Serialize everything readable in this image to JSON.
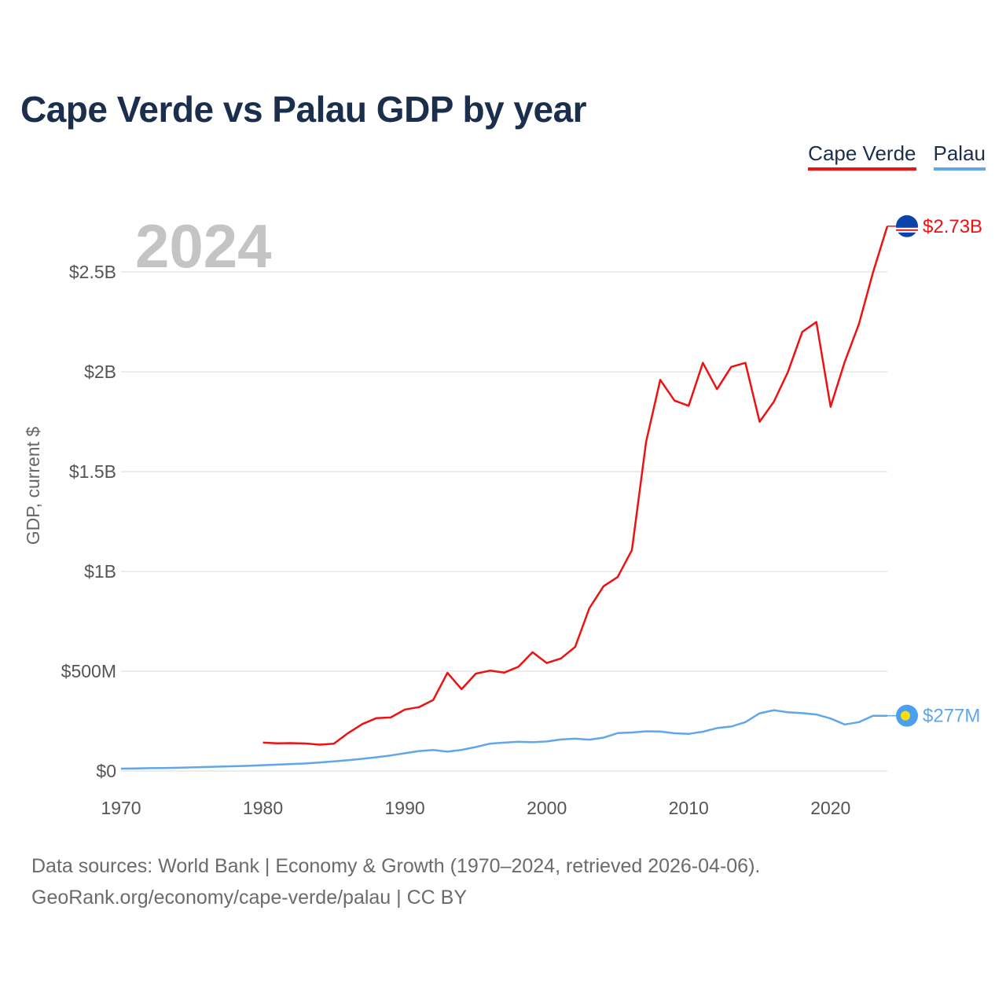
{
  "title": "Cape Verde vs Palau GDP by year",
  "legend": {
    "cape_verde": "Cape Verde",
    "palau": "Palau"
  },
  "year_overlay": "2024",
  "source_line1": "Data sources: World Bank | Economy & Growth (1970–2024, retrieved 2026-04-06).",
  "source_line2": "GeoRank.org/economy/cape-verde/palau | CC BY",
  "colors": {
    "cape_verde": "#ee1111",
    "palau": "#62a6ea",
    "grid": "#e6e6e6"
  },
  "chart_data": {
    "type": "line",
    "title": "Cape Verde vs Palau GDP by year",
    "xlabel": "",
    "ylabel": "GDP, current $",
    "xlim": [
      1970,
      2024
    ],
    "ylim": [
      0,
      2800000000
    ],
    "x_ticks": [
      1970,
      1980,
      1990,
      2000,
      2010,
      2020
    ],
    "y_ticks": [
      {
        "value": 0,
        "label": "$0"
      },
      {
        "value": 500000000,
        "label": "$500M"
      },
      {
        "value": 1000000000,
        "label": "$1B"
      },
      {
        "value": 1500000000,
        "label": "$1.5B"
      },
      {
        "value": 2000000000,
        "label": "$2B"
      },
      {
        "value": 2500000000,
        "label": "$2.5B"
      }
    ],
    "series": [
      {
        "name": "Cape Verde",
        "end_label": "$2.73B",
        "x": [
          1980,
          1981,
          1982,
          1983,
          1984,
          1985,
          1986,
          1987,
          1988,
          1989,
          1990,
          1991,
          1992,
          1993,
          1994,
          1995,
          1996,
          1997,
          1998,
          1999,
          2000,
          2001,
          2002,
          2003,
          2004,
          2005,
          2006,
          2007,
          2008,
          2009,
          2010,
          2011,
          2012,
          2013,
          2014,
          2015,
          2016,
          2017,
          2018,
          2019,
          2020,
          2021,
          2022,
          2023,
          2024
        ],
        "values": [
          142000000,
          139000000,
          140000000,
          138000000,
          132000000,
          137000000,
          190000000,
          235000000,
          265000000,
          268000000,
          308000000,
          320000000,
          356000000,
          492000000,
          410000000,
          488000000,
          503000000,
          493000000,
          522000000,
          595000000,
          541000000,
          564000000,
          622000000,
          815000000,
          926000000,
          972000000,
          1107000000,
          1650000000,
          1960000000,
          1856000000,
          1830000000,
          2045000000,
          1913000000,
          2025000000,
          2045000000,
          1750000000,
          1850000000,
          2000000000,
          2200000000,
          2250000000,
          1825000000,
          2050000000,
          2240000000,
          2500000000,
          2730000000
        ]
      },
      {
        "name": "Palau",
        "end_label": "$277M",
        "x": [
          1970,
          1971,
          1972,
          1973,
          1974,
          1975,
          1976,
          1977,
          1978,
          1979,
          1980,
          1981,
          1982,
          1983,
          1984,
          1985,
          1986,
          1987,
          1988,
          1989,
          1990,
          1991,
          1992,
          1993,
          1994,
          1995,
          1996,
          1997,
          1998,
          1999,
          2000,
          2001,
          2002,
          2003,
          2004,
          2005,
          2006,
          2007,
          2008,
          2009,
          2010,
          2011,
          2012,
          2013,
          2014,
          2015,
          2016,
          2017,
          2018,
          2019,
          2020,
          2021,
          2022,
          2023,
          2024
        ],
        "values": [
          12000000,
          13000000,
          14000000,
          15000000,
          16000000,
          18000000,
          20000000,
          22000000,
          24000000,
          26000000,
          29000000,
          32000000,
          35000000,
          38000000,
          43000000,
          48000000,
          54000000,
          61000000,
          69000000,
          78000000,
          89000000,
          100000000,
          105000000,
          97000000,
          106000000,
          120000000,
          137000000,
          142000000,
          147000000,
          144000000,
          148000000,
          158000000,
          162000000,
          157000000,
          167000000,
          190000000,
          193000000,
          199000000,
          198000000,
          189000000,
          186000000,
          197000000,
          215000000,
          223000000,
          245000000,
          289000000,
          305000000,
          294000000,
          290000000,
          283000000,
          263000000,
          233000000,
          245000000,
          277000000,
          277000000
        ]
      }
    ]
  }
}
